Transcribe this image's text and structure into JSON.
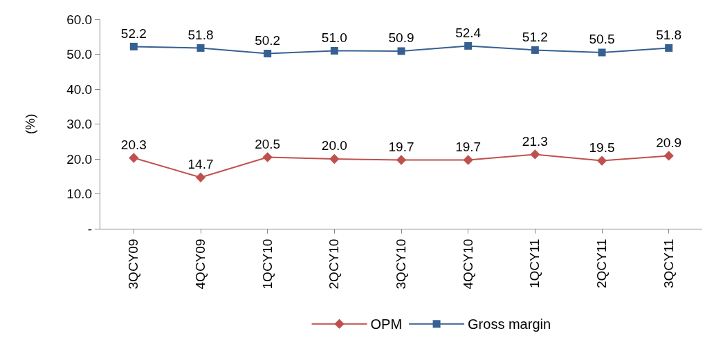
{
  "chart_data": {
    "type": "line",
    "ylabel": "(%)",
    "categories": [
      "3QCY09",
      "4QCY09",
      "1QCY10",
      "2QCY10",
      "3QCY10",
      "4QCY10",
      "1QCY11",
      "2QCY11",
      "3QCY11"
    ],
    "series": [
      {
        "name": "OPM",
        "color": "#c0504d",
        "marker": "diamond",
        "values": [
          20.3,
          14.7,
          20.5,
          20.0,
          19.7,
          19.7,
          21.3,
          19.5,
          20.9
        ],
        "value_labels": [
          "20.3",
          "14.7",
          "20.5",
          "20.0",
          "19.7",
          "19.7",
          "21.3",
          "19.5",
          "20.9"
        ]
      },
      {
        "name": "Gross margin",
        "color": "#376092",
        "marker": "square",
        "values": [
          52.2,
          51.8,
          50.2,
          51.0,
          50.9,
          52.4,
          51.2,
          50.5,
          51.8
        ],
        "value_labels": [
          "52.2",
          "51.8",
          "50.2",
          "51.0",
          "50.9",
          "52.4",
          "51.2",
          "50.5",
          "51.8"
        ]
      }
    ],
    "ylim": [
      0,
      60
    ],
    "yticks": [
      {
        "value": 0,
        "label": "-"
      },
      {
        "value": 10,
        "label": "10.0"
      },
      {
        "value": 20,
        "label": "20.0"
      },
      {
        "value": 30,
        "label": "30.0"
      },
      {
        "value": 40,
        "label": "40.0"
      },
      {
        "value": 50,
        "label": "50.0"
      },
      {
        "value": 60,
        "label": "60.0"
      }
    ],
    "legend": "bottom",
    "line_style": "solid"
  }
}
